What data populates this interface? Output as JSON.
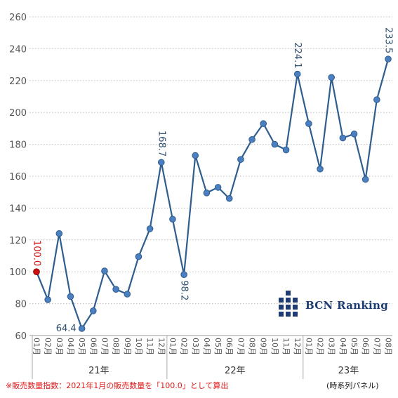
{
  "chart_data": {
    "type": "line",
    "x": [
      "01月",
      "02月",
      "03月",
      "04月",
      "05月",
      "06月",
      "07月",
      "08月",
      "09月",
      "10月",
      "11月",
      "12月",
      "01月",
      "02月",
      "03月",
      "04月",
      "05月",
      "06月",
      "07月",
      "08月",
      "09月",
      "10月",
      "11月",
      "12月",
      "01月",
      "02月",
      "03月",
      "04月",
      "05月",
      "06月",
      "07月",
      "08月"
    ],
    "values": [
      100.0,
      82.5,
      124.0,
      84.5,
      64.4,
      75.5,
      100.5,
      89.0,
      86.0,
      109.5,
      127.0,
      168.7,
      133.0,
      98.2,
      173.0,
      149.5,
      153.0,
      146.0,
      170.5,
      183.0,
      193.0,
      180.0,
      176.5,
      224.1,
      193.0,
      164.5,
      222.0,
      184.0,
      186.5,
      158.0,
      208.0,
      233.5
    ],
    "years": [
      {
        "label": "21年",
        "start": 0,
        "end": 11
      },
      {
        "label": "22年",
        "start": 12,
        "end": 23
      },
      {
        "label": "23年",
        "start": 24,
        "end": 31
      }
    ],
    "data_labels": [
      {
        "index": 0,
        "text": "100.0",
        "highlight": true
      },
      {
        "index": 4,
        "text": "64.4"
      },
      {
        "index": 11,
        "text": "168.7"
      },
      {
        "index": 13,
        "text": "98.2"
      },
      {
        "index": 23,
        "text": "224.1"
      },
      {
        "index": 31,
        "text": "233.5"
      }
    ],
    "yticks": [
      60,
      80,
      100,
      120,
      140,
      160,
      180,
      200,
      220,
      240,
      260
    ],
    "ylim": [
      60,
      260
    ],
    "grid": true,
    "line_color": "#2e5d8e",
    "marker_color": "#4b7fbf",
    "highlight_color": "#d01010"
  },
  "footnote": "※販売数量指数：2021年1月の販売数量を「100.0」として算出",
  "panel_note": "(時系列パネル)",
  "logo": {
    "text": "BCN Ranking",
    "icon": "bcn-building-icon",
    "color": "#1f3b73"
  }
}
